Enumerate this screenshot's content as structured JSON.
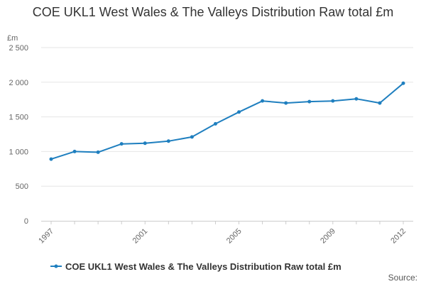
{
  "chart_data": {
    "type": "line",
    "title": "COE UKL1 West Wales & The Valleys Distribution Raw total £m",
    "ylabel": "£m",
    "xlabel": "",
    "x": [
      1997,
      1998,
      1999,
      2000,
      2001,
      2002,
      2003,
      2004,
      2005,
      2006,
      2007,
      2008,
      2009,
      2010,
      2011,
      2012
    ],
    "x_tick_labels": [
      "1997",
      "2001",
      "2005",
      "2009",
      "2012"
    ],
    "y_ticks": [
      0,
      500,
      1000,
      1500,
      2000,
      2500
    ],
    "y_tick_labels": [
      "0",
      "500",
      "1 000",
      "1 500",
      "2 000",
      "2 500"
    ],
    "ylim": [
      0,
      2500
    ],
    "series": [
      {
        "name": "COE UKL1 West Wales & The Valleys Distribution Raw total £m",
        "color": "#1f7fbf",
        "values": [
          890,
          1000,
          990,
          1110,
          1120,
          1150,
          1210,
          1400,
          1570,
          1730,
          1700,
          1720,
          1730,
          1760,
          1700,
          1985
        ]
      }
    ],
    "grid": true,
    "legend": "bottom-center",
    "source_label": "Source:"
  }
}
